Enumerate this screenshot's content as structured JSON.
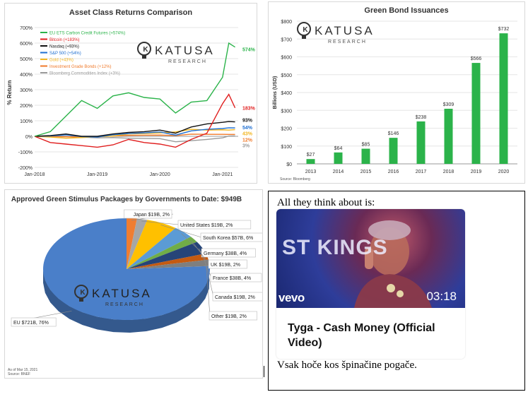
{
  "panel_returns": {
    "logo": {
      "name": "KATUSA",
      "sub": "RESEARCH"
    },
    "end_labels": [
      "574%",
      "183%",
      "93%",
      "54%",
      "43%",
      "12%",
      "3%"
    ]
  },
  "panel_bonds": {
    "logo": {
      "name": "KATUSA",
      "sub": "RESEARCH"
    },
    "source": "Source: Bloomberg",
    "y_tick_labels": [
      "$0",
      "$100",
      "$200",
      "$300",
      "$400",
      "$500",
      "$600",
      "$700",
      "$800"
    ]
  },
  "panel_stimulus": {
    "logo": {
      "name": "KATUSA",
      "sub": "RESEARCH"
    },
    "footnote_date": "As of Mar 15, 2021",
    "footnote_source": "Source: BNEF"
  },
  "post": {
    "header_text": "All they think about is:",
    "footer_text": "Vsak hoče kos špinačine pogače.",
    "video": {
      "title": "Tyga - Cash Money (Official Video)",
      "duration": "03:18",
      "brand": "vevo",
      "sign_text": "ST KINGS"
    }
  },
  "chart_data": [
    {
      "type": "line",
      "title": "Asset Class Returns Comparison",
      "ylabel": "% Return",
      "ylim": [
        -200,
        700
      ],
      "y_ticks": [
        "-200%",
        "-100%",
        "0%",
        "100%",
        "200%",
        "300%",
        "400%",
        "500%",
        "600%",
        "700%"
      ],
      "x_ticks": [
        "Jan-2018",
        "Jan-2019",
        "Jan-2020",
        "Jan-2021"
      ],
      "legend_position": "top-left",
      "x": [
        2018.0,
        2018.25,
        2018.5,
        2018.75,
        2019.0,
        2019.25,
        2019.5,
        2019.75,
        2020.0,
        2020.25,
        2020.5,
        2020.75,
        2021.0,
        2021.1,
        2021.2
      ],
      "series": [
        {
          "name": "EU ETS Carbon Credit Futures (+574%)",
          "color": "#2bb34a",
          "end": 574,
          "values": [
            0,
            30,
            130,
            230,
            180,
            260,
            280,
            250,
            240,
            150,
            220,
            230,
            380,
            600,
            574
          ]
        },
        {
          "name": "Bitcoin (+183%)",
          "color": "#e01e1e",
          "end": 183,
          "values": [
            0,
            -40,
            -50,
            -60,
            -70,
            -55,
            -20,
            -40,
            -50,
            -70,
            -20,
            20,
            210,
            270,
            183
          ]
        },
        {
          "name": "Nasdaq (+93%)",
          "color": "#111111",
          "end": 93,
          "values": [
            0,
            5,
            15,
            0,
            0,
            15,
            25,
            30,
            40,
            20,
            60,
            80,
            90,
            95,
            93
          ]
        },
        {
          "name": "S&P 500 (+54%)",
          "color": "#1f6fd1",
          "end": 54,
          "values": [
            0,
            2,
            10,
            -2,
            -5,
            10,
            18,
            22,
            28,
            8,
            35,
            45,
            50,
            55,
            54
          ]
        },
        {
          "name": "Gold (+43%)",
          "color": "#f2b51f",
          "end": 43,
          "values": [
            0,
            -5,
            -12,
            -8,
            -3,
            2,
            15,
            18,
            22,
            28,
            45,
            40,
            42,
            40,
            43
          ]
        },
        {
          "name": "Investment Grade Bonds (+12%)",
          "color": "#f07a2a",
          "end": 12,
          "values": [
            0,
            -2,
            -3,
            -4,
            -3,
            2,
            6,
            7,
            8,
            5,
            14,
            13,
            13,
            12,
            12
          ]
        },
        {
          "name": "Bloomberg Commodities Index (+3%)",
          "color": "#9a9a9a",
          "end": 3,
          "values": [
            0,
            2,
            0,
            -5,
            -10,
            -8,
            -12,
            -14,
            -15,
            -35,
            -28,
            -20,
            -10,
            2,
            3
          ]
        }
      ]
    },
    {
      "type": "bar",
      "title": "Green Bond Issuances",
      "ylabel": "Billions (USD)",
      "ylim": [
        0,
        800
      ],
      "categories": [
        "2013",
        "2014",
        "2015",
        "2016",
        "2017",
        "2018",
        "2019",
        "2020"
      ],
      "values": [
        27,
        64,
        85,
        146,
        238,
        309,
        566,
        732
      ],
      "value_labels": [
        "$27",
        "$64",
        "$85",
        "$146",
        "$238",
        "$309",
        "$566",
        "$732"
      ],
      "color": "#2bb34a"
    },
    {
      "type": "pie",
      "title": "Approved Green Stimulus Packages by Governments to Date: $949B",
      "slices": [
        {
          "label": "EU $721B, 76%",
          "value": 721,
          "color": "#4a7fc9"
        },
        {
          "label": "Japan $19B, 2%",
          "value": 19,
          "color": "#ef7d31"
        },
        {
          "label": "United States $19B, 2%",
          "value": 19,
          "color": "#a6a6a6"
        },
        {
          "label": "South Korea $57B, 6%",
          "value": 57,
          "color": "#ffc000"
        },
        {
          "label": "Germany $38B, 4%",
          "value": 38,
          "color": "#5b9bd5"
        },
        {
          "label": "UK $19B, 2%",
          "value": 19,
          "color": "#70ad47"
        },
        {
          "label": "France $38B, 4%",
          "value": 38,
          "color": "#264478"
        },
        {
          "label": "Canada $19B, 2%",
          "value": 19,
          "color": "#c55a11"
        },
        {
          "label": "Other $19B, 2%",
          "value": 19,
          "color": "#7f7f7f"
        }
      ]
    }
  ]
}
